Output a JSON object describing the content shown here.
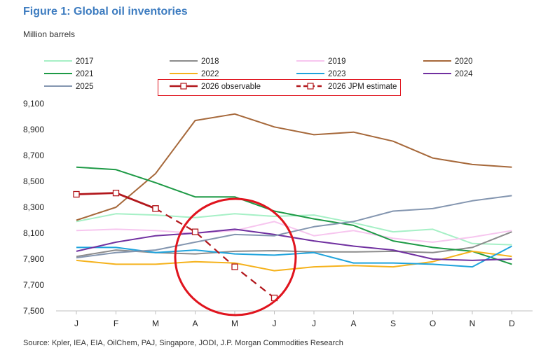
{
  "figure": {
    "title": "Figure 1: Global oil inventories",
    "unit_label": "Million barrels",
    "source": "Source: Kpler, IEA, EIA, OilChem, PAJ, Singapore, JODI, J.P. Morgan Commodities Research"
  },
  "chart_data": {
    "type": "line",
    "title": "Figure 1: Global oil inventories",
    "ylabel": "Million barrels",
    "xlabel": "",
    "categories": [
      "J",
      "F",
      "M",
      "A",
      "M",
      "J",
      "J",
      "A",
      "S",
      "O",
      "N",
      "D"
    ],
    "ylim": [
      7500,
      9100
    ],
    "yticks": [
      7500,
      7700,
      7900,
      8100,
      8300,
      8500,
      8700,
      8900,
      9100
    ],
    "ytick_labels": [
      "7,500",
      "7,700",
      "7,900",
      "8,100",
      "8,300",
      "8,500",
      "8,700",
      "8,900",
      "9,100"
    ],
    "grid": false,
    "legend_position": "top",
    "highlight_circle_around": [
      "A",
      "M",
      "J"
    ],
    "series": [
      {
        "name": "2017",
        "color": "#a6f0c6",
        "style": "solid",
        "values": [
          8190,
          8250,
          8240,
          8220,
          8250,
          8230,
          8240,
          8180,
          8110,
          8130,
          8020,
          8010
        ]
      },
      {
        "name": "2018",
        "color": "#8c8c8c",
        "style": "solid",
        "values": [
          7920,
          7970,
          7950,
          7940,
          7960,
          7965,
          7955,
          7955,
          7960,
          7950,
          7990,
          8110
        ]
      },
      {
        "name": "2019",
        "color": "#f7c6ef",
        "style": "solid",
        "values": [
          8120,
          8130,
          8120,
          8100,
          8120,
          8190,
          8080,
          8120,
          8060,
          8030,
          8070,
          8120
        ]
      },
      {
        "name": "2020",
        "color": "#a6683a",
        "style": "solid",
        "values": [
          8200,
          8300,
          8560,
          8970,
          9020,
          8920,
          8860,
          8880,
          8810,
          8680,
          8630,
          8610
        ]
      },
      {
        "name": "2021",
        "color": "#1e9a46",
        "style": "solid",
        "values": [
          8610,
          8590,
          8490,
          8380,
          8380,
          8270,
          8210,
          8160,
          8040,
          7990,
          7960,
          7860
        ]
      },
      {
        "name": "2022",
        "color": "#f5b21c",
        "style": "solid",
        "values": [
          7890,
          7860,
          7860,
          7880,
          7870,
          7810,
          7840,
          7850,
          7840,
          7880,
          7960,
          7920
        ]
      },
      {
        "name": "2023",
        "color": "#1fa3dc",
        "style": "solid",
        "values": [
          7990,
          7990,
          7950,
          7970,
          7940,
          7930,
          7950,
          7870,
          7870,
          7860,
          7840,
          8000
        ]
      },
      {
        "name": "2024",
        "color": "#7030a0",
        "style": "solid",
        "values": [
          7960,
          8030,
          8080,
          8100,
          8130,
          8090,
          8040,
          8000,
          7970,
          7900,
          7890,
          7900
        ]
      },
      {
        "name": "2025",
        "color": "#8496b0",
        "style": "solid",
        "values": [
          7910,
          7950,
          7970,
          8030,
          8090,
          8080,
          8150,
          8190,
          8270,
          8290,
          8350,
          8390
        ]
      },
      {
        "name": "2026 observable",
        "color": "#b2171c",
        "style": "solid-marker",
        "values": [
          8400,
          8410,
          8290,
          null,
          null,
          null,
          null,
          null,
          null,
          null,
          null,
          null
        ]
      },
      {
        "name": "2026 JPM estimate",
        "color": "#b2171c",
        "style": "dashed-marker",
        "values": [
          null,
          null,
          8290,
          8110,
          7840,
          7600,
          null,
          null,
          null,
          null,
          null,
          null
        ]
      }
    ]
  }
}
